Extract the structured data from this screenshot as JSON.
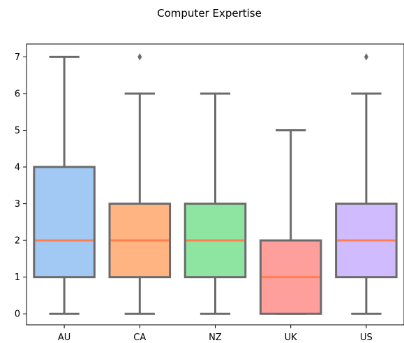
{
  "chart_data": {
    "type": "box",
    "title": "Computer Expertise",
    "xlabel": "",
    "ylabel": "",
    "ylim": [
      -0.3,
      7.35
    ],
    "yticks": [
      0,
      1,
      2,
      3,
      4,
      5,
      6,
      7
    ],
    "grid": false,
    "categories": [
      "AU",
      "CA",
      "NZ",
      "UK",
      "US"
    ],
    "colors": [
      "#a1c9f4",
      "#ffb482",
      "#8de5a1",
      "#ff9f9b",
      "#d0bbff"
    ],
    "median_color": "#ff7f50",
    "line_color": "#6b6b6b",
    "boxes": [
      {
        "category": "AU",
        "whisker_low": 0,
        "q1": 1,
        "median": 2,
        "q3": 4,
        "whisker_high": 7,
        "outliers": []
      },
      {
        "category": "CA",
        "whisker_low": 0,
        "q1": 1,
        "median": 2,
        "q3": 3,
        "whisker_high": 6,
        "outliers": [
          7
        ]
      },
      {
        "category": "NZ",
        "whisker_low": 0,
        "q1": 1,
        "median": 2,
        "q3": 3,
        "whisker_high": 6,
        "outliers": []
      },
      {
        "category": "UK",
        "whisker_low": 0,
        "q1": 0,
        "median": 1,
        "q3": 2,
        "whisker_high": 5,
        "outliers": []
      },
      {
        "category": "US",
        "whisker_low": 0,
        "q1": 1,
        "median": 2,
        "q3": 3,
        "whisker_high": 6,
        "outliers": [
          7
        ]
      }
    ]
  }
}
